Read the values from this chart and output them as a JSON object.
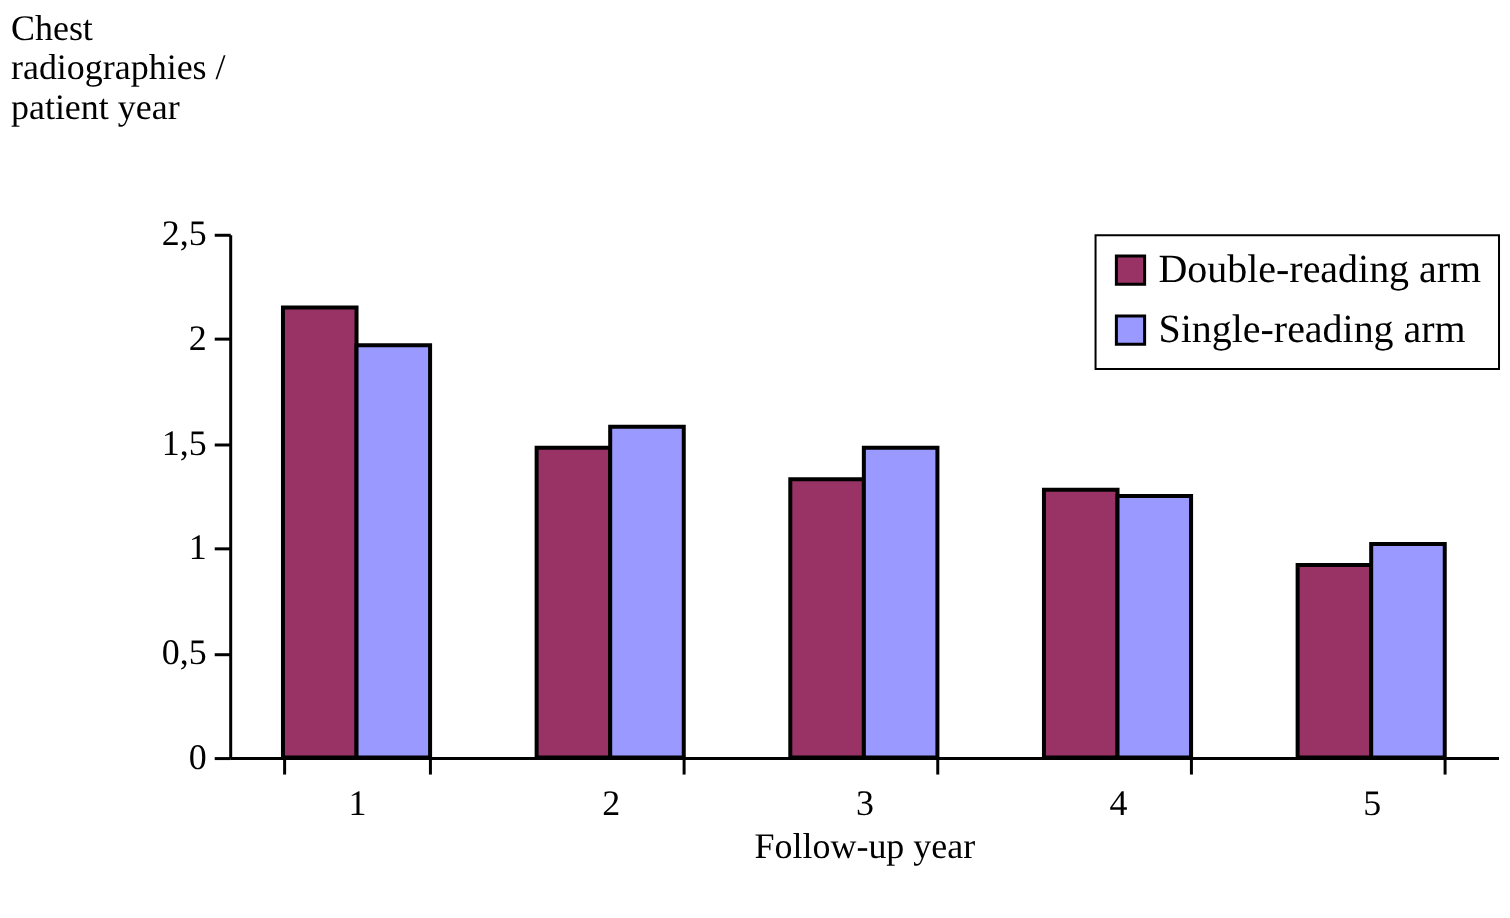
{
  "chart_data": {
    "type": "bar",
    "xlabel": "Follow-up year",
    "ylabel": "Chest radiographies / patient year",
    "categories": [
      "1",
      "2",
      "3",
      "4",
      "5"
    ],
    "series": [
      {
        "name": "Double-reading arm",
        "color": "#993366",
        "values": [
          2.15,
          1.48,
          1.33,
          1.28,
          0.92
        ]
      },
      {
        "name": "Single-reading arm",
        "color": "#9999ff",
        "values": [
          1.97,
          1.58,
          1.48,
          1.25,
          1.02
        ]
      }
    ],
    "ylim": [
      0,
      2.5
    ],
    "yticks": [
      0,
      {
        "value": 0.5,
        "label": "0,5"
      },
      1,
      {
        "value": 1.5,
        "label": "1,5"
      },
      2,
      {
        "value": 2.5,
        "label": "2,5"
      }
    ],
    "grid": false,
    "legend": "top right"
  }
}
